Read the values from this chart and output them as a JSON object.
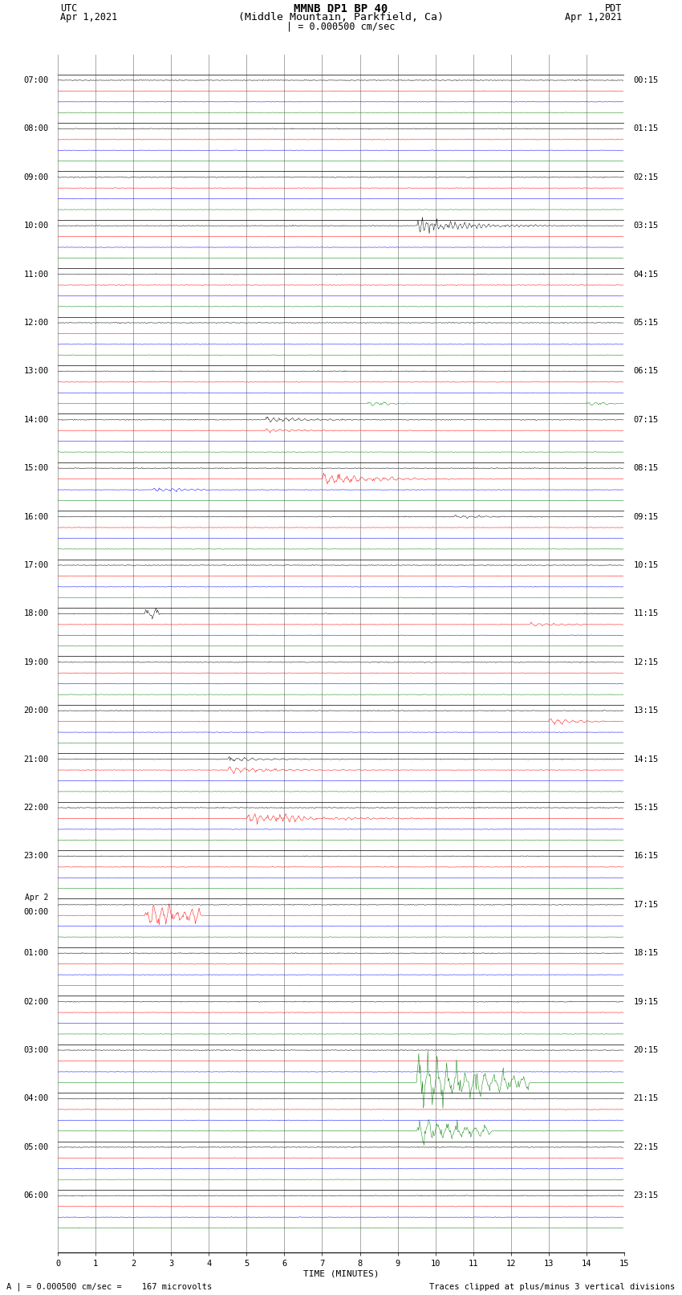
{
  "title_line1": "MMNB DP1 BP 40",
  "title_line2": "(Middle Mountain, Parkfield, Ca)",
  "scale_label": "| = 0.000500 cm/sec",
  "left_label": "UTC",
  "left_date": "Apr 1,2021",
  "right_label": "PDT",
  "right_date": "Apr 1,2021",
  "xlabel": "TIME (MINUTES)",
  "footer_left": "A | = 0.000500 cm/sec =    167 microvolts",
  "footer_right": "Traces clipped at plus/minus 3 vertical divisions",
  "n_rows": 24,
  "minutes_per_row": 15,
  "colors": [
    "black",
    "red",
    "blue",
    "green"
  ],
  "background_color": "white",
  "left_times": [
    "07:00",
    "08:00",
    "09:00",
    "10:00",
    "11:00",
    "12:00",
    "13:00",
    "14:00",
    "15:00",
    "16:00",
    "17:00",
    "18:00",
    "19:00",
    "20:00",
    "21:00",
    "22:00",
    "23:00",
    "Apr 2\n00:00",
    "01:00",
    "02:00",
    "03:00",
    "04:00",
    "05:00",
    "06:00"
  ],
  "right_times": [
    "00:15",
    "01:15",
    "02:15",
    "03:15",
    "04:15",
    "05:15",
    "06:15",
    "07:15",
    "08:15",
    "09:15",
    "10:15",
    "11:15",
    "12:15",
    "13:15",
    "14:15",
    "15:15",
    "16:15",
    "17:15",
    "18:15",
    "19:15",
    "20:15",
    "21:15",
    "22:15",
    "23:15"
  ],
  "noise_amps": [
    0.018,
    0.012,
    0.01,
    0.01
  ],
  "trace_sep": 1.0,
  "row_sep": 4.5,
  "clip_div": 3,
  "event_specs": [
    {
      "row": 3,
      "trace": 0,
      "t0": 9.5,
      "amp": 0.8,
      "decay": 0.8,
      "freq": 8.0,
      "dur": 4.5
    },
    {
      "row": 6,
      "trace": 3,
      "t0": 8.2,
      "amp": 0.25,
      "decay": 1.5,
      "freq": 5.0,
      "dur": 1.5
    },
    {
      "row": 6,
      "trace": 3,
      "t0": 14.0,
      "amp": 0.2,
      "decay": 1.5,
      "freq": 5.0,
      "dur": 0.8
    },
    {
      "row": 7,
      "trace": 0,
      "t0": 5.5,
      "amp": 0.3,
      "decay": 1.0,
      "freq": 6.0,
      "dur": 4.0
    },
    {
      "row": 7,
      "trace": 1,
      "t0": 5.5,
      "amp": 0.2,
      "decay": 1.0,
      "freq": 6.0,
      "dur": 3.5
    },
    {
      "row": 8,
      "trace": 1,
      "t0": 7.0,
      "amp": 0.5,
      "decay": 0.7,
      "freq": 5.0,
      "dur": 7.0
    },
    {
      "row": 8,
      "trace": 2,
      "t0": 2.5,
      "amp": 0.25,
      "decay": 1.0,
      "freq": 6.0,
      "dur": 1.5
    },
    {
      "row": 9,
      "trace": 0,
      "t0": 10.5,
      "amp": 0.2,
      "decay": 1.2,
      "freq": 5.0,
      "dur": 3.0
    },
    {
      "row": 11,
      "trace": 0,
      "t0": 2.3,
      "amp": 0.6,
      "decay": 0.3,
      "freq": 4.0,
      "dur": 0.4
    },
    {
      "row": 11,
      "trace": 1,
      "t0": 12.5,
      "amp": 0.2,
      "decay": 1.0,
      "freq": 5.0,
      "dur": 1.5
    },
    {
      "row": 13,
      "trace": 1,
      "t0": 13.0,
      "amp": 0.3,
      "decay": 1.0,
      "freq": 5.0,
      "dur": 1.5
    },
    {
      "row": 14,
      "trace": 0,
      "t0": 4.5,
      "amp": 0.25,
      "decay": 1.0,
      "freq": 5.0,
      "dur": 5.0
    },
    {
      "row": 14,
      "trace": 1,
      "t0": 4.5,
      "amp": 0.35,
      "decay": 0.8,
      "freq": 5.0,
      "dur": 6.0
    },
    {
      "row": 15,
      "trace": 1,
      "t0": 5.0,
      "amp": 0.6,
      "decay": 0.6,
      "freq": 6.0,
      "dur": 8.0
    },
    {
      "row": 17,
      "trace": 1,
      "t0": 2.3,
      "amp": 1.2,
      "decay": 0.4,
      "freq": 5.0,
      "dur": 1.5
    },
    {
      "row": 20,
      "trace": 3,
      "t0": 9.5,
      "amp": 2.8,
      "decay": 0.5,
      "freq": 4.0,
      "dur": 3.0
    },
    {
      "row": 21,
      "trace": 3,
      "t0": 9.5,
      "amp": 1.2,
      "decay": 0.5,
      "freq": 4.0,
      "dur": 2.0
    }
  ]
}
